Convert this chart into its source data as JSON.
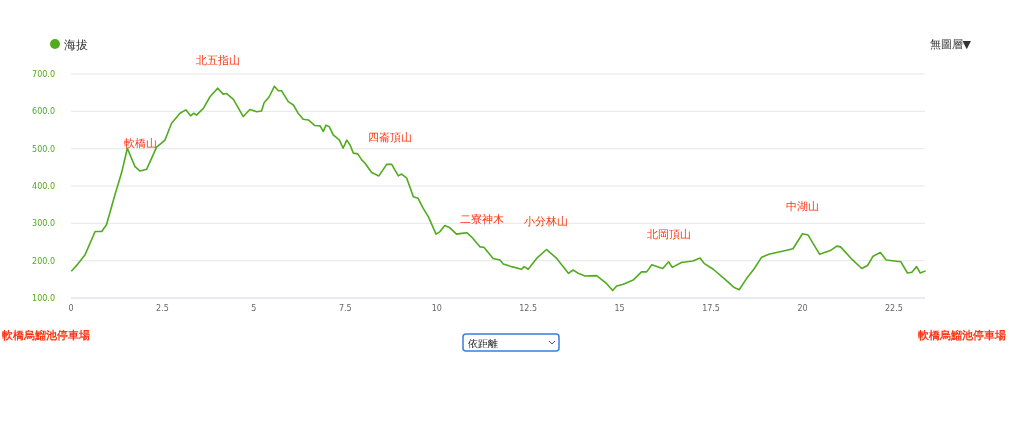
{
  "chart_data": {
    "type": "line",
    "legend": "top left",
    "grid": "y",
    "marker": "none",
    "line_style": "solid",
    "xlim": [
      0,
      23.35
    ],
    "ylim": [
      100,
      700
    ],
    "xticks": [
      0,
      2.5,
      5,
      7.5,
      10,
      12.5,
      15,
      17.5,
      20,
      22.5
    ],
    "yticks": [
      {
        "value": 100,
        "label": "100.0"
      },
      {
        "value": 200,
        "label": "200.0"
      },
      {
        "value": 300,
        "label": "300.0"
      },
      {
        "value": 400,
        "label": "400.0"
      },
      {
        "value": 500,
        "label": "500.0"
      },
      {
        "value": 600,
        "label": "600.0"
      },
      {
        "value": 700,
        "label": "700.0"
      }
    ],
    "x": [
      0.02,
      0.16,
      0.38,
      0.66,
      0.84,
      0.97,
      1.2,
      1.39,
      1.54,
      1.75,
      1.89,
      2.07,
      2.34,
      2.57,
      2.75,
      2.98,
      3.14,
      3.27,
      3.36,
      3.43,
      3.62,
      3.8,
      4.01,
      4.16,
      4.25,
      4.44,
      4.71,
      4.89,
      5.08,
      5.21,
      5.28,
      5.42,
      5.56,
      5.67,
      5.76,
      5.94,
      6.08,
      6.21,
      6.35,
      6.49,
      6.67,
      6.81,
      6.9,
      6.97,
      7.06,
      7.17,
      7.34,
      7.44,
      7.54,
      7.63,
      7.72,
      7.84,
      7.95,
      8.04,
      8.22,
      8.42,
      8.63,
      8.77,
      8.95,
      9.04,
      9.18,
      9.36,
      9.49,
      9.63,
      9.77,
      9.98,
      10.09,
      10.22,
      10.36,
      10.54,
      10.68,
      10.82,
      10.95,
      11.18,
      11.29,
      11.54,
      11.73,
      11.82,
      12.05,
      12.32,
      12.39,
      12.5,
      12.73,
      13.0,
      13.28,
      13.6,
      13.73,
      13.87,
      14.05,
      14.37,
      14.64,
      14.81,
      14.92,
      15.1,
      15.37,
      15.6,
      15.74,
      15.88,
      16.18,
      16.34,
      16.44,
      16.69,
      17.0,
      17.2,
      17.32,
      17.56,
      17.86,
      18.12,
      18.27,
      18.47,
      18.67,
      18.88,
      19.08,
      19.54,
      19.74,
      20.0,
      20.15,
      20.47,
      20.76,
      20.94,
      21.04,
      21.37,
      21.62,
      21.78,
      21.93,
      22.13,
      22.29,
      22.69,
      22.87,
      22.99,
      23.12,
      23.22,
      23.35
    ],
    "series": [
      {
        "name": "海拔",
        "color": "#52ab1e",
        "values": [
          173,
          188,
          215,
          278,
          278,
          296,
          376,
          438,
          501,
          452,
          440,
          445,
          504,
          523,
          568,
          595,
          604,
          588,
          595,
          590,
          608,
          639,
          662,
          646,
          648,
          632,
          586,
          605,
          599,
          601,
          623,
          639,
          667,
          655,
          655,
          626,
          617,
          595,
          579,
          577,
          562,
          561,
          546,
          563,
          559,
          537,
          523,
          501,
          523,
          510,
          488,
          486,
          470,
          461,
          436,
          427,
          458,
          458,
          427,
          432,
          421,
          371,
          367,
          340,
          318,
          271,
          278,
          294,
          288,
          271,
          273,
          275,
          264,
          237,
          236,
          206,
          202,
          191,
          184,
          177,
          184,
          177,
          206,
          230,
          206,
          166,
          175,
          166,
          159,
          160,
          139,
          120,
          132,
          137,
          148,
          170,
          170,
          189,
          179,
          197,
          182,
          195,
          199,
          207,
          192,
          177,
          152,
          129,
          122,
          152,
          177,
          209,
          217,
          227,
          232,
          272,
          269,
          217,
          227,
          239,
          237,
          202,
          179,
          187,
          212,
          222,
          202,
          197,
          167,
          169,
          184,
          167,
          172
        ]
      }
    ],
    "annotations": [
      "軟橋烏鰡池停車場",
      "軟橋烏鰡池停車場",
      "依距離",
      "無圖層▼",
      {
        "text": "軟橋山",
        "x": 1.89,
        "y": 440
      },
      {
        "text": "北五指山",
        "x": 4.01,
        "y": 662
      },
      {
        "text": "四崙頂山",
        "x": 8.72,
        "y": 456
      },
      {
        "text": "二寮神木",
        "x": 11.25,
        "y": 236
      },
      {
        "text": "小分林山",
        "x": 13.0,
        "y": 230
      },
      {
        "text": "北岡頂山",
        "x": 16.34,
        "y": 197
      },
      {
        "text": "中湖山",
        "x": 20.0,
        "y": 272
      }
    ]
  }
}
